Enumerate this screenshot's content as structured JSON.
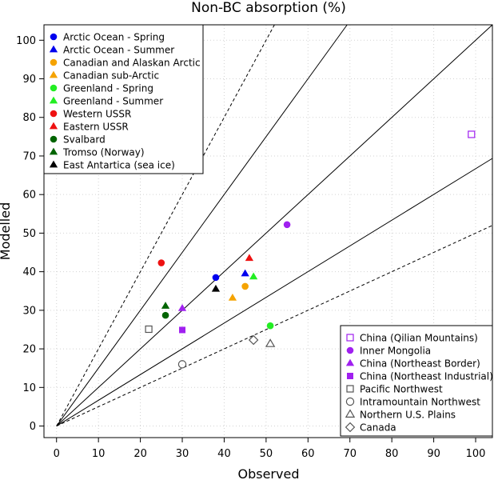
{
  "chart_data": {
    "type": "scatter",
    "title": "Non-BC absorption (%)",
    "xlabel": "Observed",
    "ylabel": "Modelled",
    "xlim": [
      -3,
      104
    ],
    "ylim": [
      -3,
      104
    ],
    "xticks": [
      0,
      10,
      20,
      30,
      40,
      50,
      60,
      70,
      80,
      90,
      100
    ],
    "yticks": [
      0,
      10,
      20,
      30,
      40,
      50,
      60,
      70,
      80,
      90,
      100
    ],
    "grid": "dotted",
    "reference_lines": [
      {
        "slope": 2.0,
        "style": "dashed"
      },
      {
        "slope": 1.5,
        "style": "solid"
      },
      {
        "slope": 1.0,
        "style": "solid"
      },
      {
        "slope": 0.667,
        "style": "solid"
      },
      {
        "slope": 0.5,
        "style": "dashed"
      }
    ],
    "legend_top_left": {
      "placement": "top-left",
      "entries": [
        {
          "label": "Arctic Ocean - Spring",
          "marker": "circle",
          "color": "#0000ee"
        },
        {
          "label": "Arctic Ocean - Summer",
          "marker": "triangle",
          "color": "#0000ee"
        },
        {
          "label": "Canadian and Alaskan Arctic",
          "marker": "circle",
          "color": "#f5a300"
        },
        {
          "label": "Canadian sub-Arctic",
          "marker": "triangle",
          "color": "#f5a300"
        },
        {
          "label": "Greenland - Spring",
          "marker": "circle",
          "color": "#22ee22"
        },
        {
          "label": "Greenland - Summer",
          "marker": "triangle",
          "color": "#22ee22"
        },
        {
          "label": "Western USSR",
          "marker": "circle",
          "color": "#ee1111"
        },
        {
          "label": "Eastern USSR",
          "marker": "triangle",
          "color": "#ee1111"
        },
        {
          "label": "Svalbard",
          "marker": "circle",
          "color": "#006400"
        },
        {
          "label": "Tromso (Norway)",
          "marker": "triangle",
          "color": "#006400"
        },
        {
          "label": "East Antartica (sea ice)",
          "marker": "triangle",
          "color": "#000000"
        }
      ]
    },
    "legend_bottom_right": {
      "placement": "bottom-right",
      "entries": [
        {
          "label": "China (Qilian Mountains)",
          "marker": "square-open",
          "color": "#a020f0"
        },
        {
          "label": "Inner Mongolia",
          "marker": "circle",
          "color": "#a020f0"
        },
        {
          "label": "China (Northeast Border)",
          "marker": "triangle",
          "color": "#a020f0"
        },
        {
          "label": "China (Northeast Industrial)",
          "marker": "square",
          "color": "#a020f0"
        },
        {
          "label": "Pacific Northwest",
          "marker": "square-open",
          "color": "#555555"
        },
        {
          "label": "Intramountain Northwest",
          "marker": "circle-open",
          "color": "#555555"
        },
        {
          "label": "Northern U.S. Plains",
          "marker": "triangle-open",
          "color": "#555555"
        },
        {
          "label": "Canada",
          "marker": "diamond-open",
          "color": "#555555"
        }
      ]
    },
    "points": [
      {
        "x": 38,
        "y": 38.5,
        "marker": "circle",
        "color": "#0000ee"
      },
      {
        "x": 45,
        "y": 39.5,
        "marker": "triangle",
        "color": "#0000ee"
      },
      {
        "x": 45,
        "y": 36.2,
        "marker": "circle",
        "color": "#f5a300"
      },
      {
        "x": 42,
        "y": 33.2,
        "marker": "triangle",
        "color": "#f5a300"
      },
      {
        "x": 51,
        "y": 26,
        "marker": "circle",
        "color": "#22ee22"
      },
      {
        "x": 47,
        "y": 38.7,
        "marker": "triangle",
        "color": "#22ee22"
      },
      {
        "x": 25,
        "y": 42.3,
        "marker": "circle",
        "color": "#ee1111"
      },
      {
        "x": 46,
        "y": 43.5,
        "marker": "triangle",
        "color": "#ee1111"
      },
      {
        "x": 26,
        "y": 28.7,
        "marker": "circle",
        "color": "#006400"
      },
      {
        "x": 26,
        "y": 31.1,
        "marker": "triangle",
        "color": "#006400"
      },
      {
        "x": 38,
        "y": 35.5,
        "marker": "triangle",
        "color": "#000000"
      },
      {
        "x": 99,
        "y": 75.6,
        "marker": "square-open",
        "color": "#a020f0"
      },
      {
        "x": 55,
        "y": 52.2,
        "marker": "circle",
        "color": "#a020f0"
      },
      {
        "x": 30,
        "y": 30.5,
        "marker": "triangle",
        "color": "#a020f0"
      },
      {
        "x": 30,
        "y": 24.9,
        "marker": "square",
        "color": "#a020f0"
      },
      {
        "x": 22,
        "y": 25.1,
        "marker": "square-open",
        "color": "#555555"
      },
      {
        "x": 30,
        "y": 16,
        "marker": "circle-open",
        "color": "#555555"
      },
      {
        "x": 51,
        "y": 21.3,
        "marker": "triangle-open",
        "color": "#555555"
      },
      {
        "x": 47,
        "y": 22.3,
        "marker": "diamond-open",
        "color": "#555555"
      }
    ]
  }
}
